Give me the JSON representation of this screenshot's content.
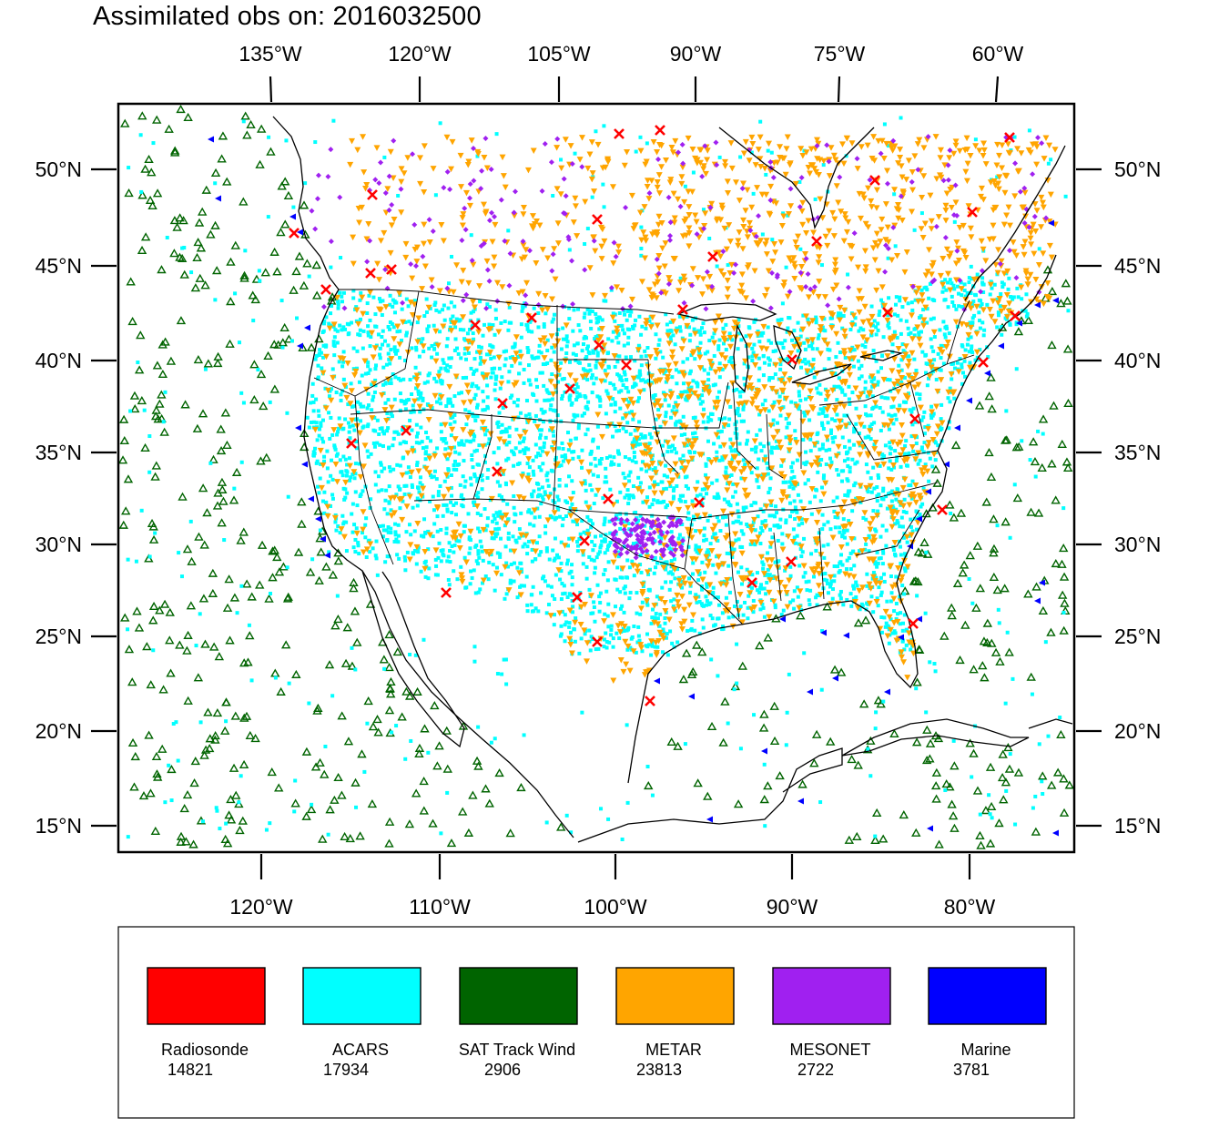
{
  "title": "Assimilated obs on: 2016032500",
  "top_axis_labels": [
    "135°W",
    "120°W",
    "105°W",
    "90°W",
    "75°W",
    "60°W"
  ],
  "bottom_axis_labels": [
    "120°W",
    "110°W",
    "100°W",
    "90°W",
    "80°W"
  ],
  "left_axis_labels": [
    "50°N",
    "45°N",
    "40°N",
    "35°N",
    "30°N",
    "25°N",
    "20°N",
    "15°N"
  ],
  "right_axis_labels": [
    "50°N",
    "45°N",
    "40°N",
    "35°N",
    "30°N",
    "25°N",
    "20°N",
    "15°N"
  ],
  "legend": [
    {
      "name": "Radiosonde",
      "count": "14821",
      "color": "#ff0000",
      "marker": "x-cross"
    },
    {
      "name": "ACARS",
      "count": "17934",
      "color": "#00ffff",
      "marker": "square"
    },
    {
      "name": "SAT Track Wind",
      "count": "2906",
      "color": "#006400",
      "marker": "triangle-up-outline"
    },
    {
      "name": "METAR",
      "count": "23813",
      "color": "#ffa500",
      "marker": "triangle-down"
    },
    {
      "name": "MESONET",
      "count": "2722",
      "color": "#a020f0",
      "marker": "diamond"
    },
    {
      "name": "Marine",
      "count": "3781",
      "color": "#0000ff",
      "marker": "triangle-left"
    }
  ]
}
